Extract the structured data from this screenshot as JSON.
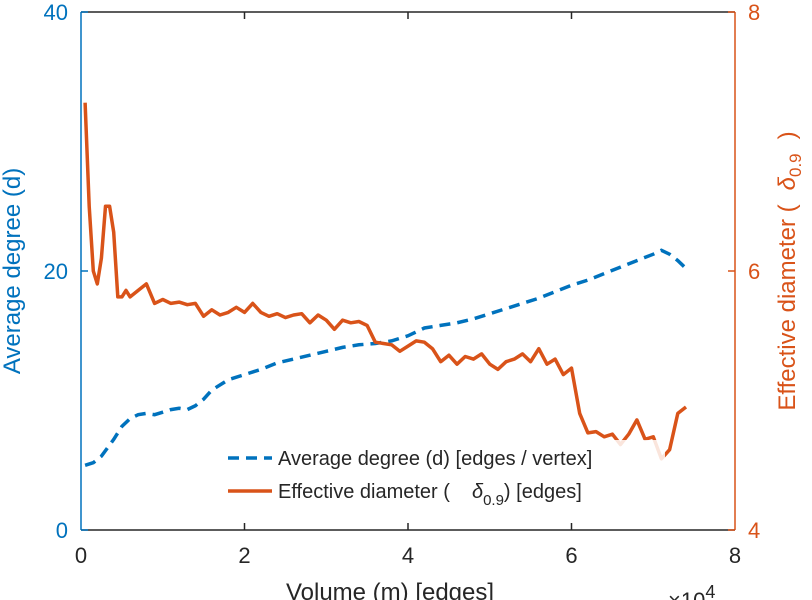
{
  "chart_data": {
    "type": "line",
    "title": "",
    "xlabel": "Volume (m) [edges]",
    "x_exponent": "×10",
    "x_exponent_power": "4",
    "xlim": [
      0,
      8
    ],
    "x_ticks": [
      "0",
      "2",
      "4",
      "6",
      "8"
    ],
    "ylabel_left": "Average degree (d)",
    "ylim_left": [
      0,
      40
    ],
    "y_ticks_left": [
      "0",
      "20",
      "40"
    ],
    "ylabel_right_prefix": "Effective diameter (",
    "ylabel_right_symbol": "δ",
    "ylabel_right_subscript": "0.9",
    "ylabel_right_suffix": ")",
    "ylim_right": [
      4,
      8
    ],
    "y_ticks_right": [
      "4",
      "6",
      "8"
    ],
    "legend": {
      "location": "bottom-right",
      "entries": [
        {
          "label": "Average degree (d) [edges / vertex]",
          "style": "dashed",
          "axis": "left"
        },
        {
          "label_prefix": "Effective diameter (",
          "symbol": "δ",
          "subscript": "0.9",
          "label_suffix": ") [edges]",
          "style": "solid",
          "axis": "right"
        }
      ]
    },
    "colors": {
      "left": "#0072bd",
      "right": "#d95319",
      "axes": "#262626"
    },
    "series": [
      {
        "name": "Average degree (d) [edges / vertex]",
        "axis": "left",
        "style": "dashed",
        "color": "#0072bd",
        "x": [
          0.05,
          0.15,
          0.25,
          0.4,
          0.5,
          0.6,
          0.7,
          0.8,
          0.9,
          1.0,
          1.1,
          1.2,
          1.3,
          1.4,
          1.5,
          1.6,
          1.8,
          2.0,
          2.2,
          2.4,
          2.6,
          2.8,
          3.0,
          3.2,
          3.4,
          3.6,
          3.8,
          4.0,
          4.2,
          4.4,
          4.6,
          4.8,
          5.0,
          5.2,
          5.4,
          5.6,
          5.8,
          6.0,
          6.2,
          6.4,
          6.6,
          6.8,
          7.0,
          7.1,
          7.2,
          7.3,
          7.4
        ],
        "values": [
          5.0,
          5.2,
          5.7,
          7.0,
          8.0,
          8.6,
          8.9,
          9.0,
          8.9,
          9.1,
          9.3,
          9.4,
          9.3,
          9.6,
          10.1,
          10.8,
          11.6,
          12.0,
          12.4,
          12.9,
          13.2,
          13.5,
          13.8,
          14.1,
          14.3,
          14.4,
          14.6,
          15.0,
          15.6,
          15.8,
          16.0,
          16.3,
          16.7,
          17.1,
          17.5,
          17.9,
          18.4,
          18.9,
          19.3,
          19.8,
          20.3,
          20.8,
          21.3,
          21.6,
          21.3,
          20.8,
          20.2
        ]
      },
      {
        "name": "Effective diameter (δ0.9) [edges]",
        "axis": "right",
        "style": "solid",
        "color": "#d95319",
        "x": [
          0.05,
          0.1,
          0.15,
          0.2,
          0.25,
          0.3,
          0.35,
          0.4,
          0.45,
          0.5,
          0.55,
          0.6,
          0.7,
          0.8,
          0.9,
          1.0,
          1.1,
          1.2,
          1.3,
          1.4,
          1.5,
          1.6,
          1.7,
          1.8,
          1.9,
          2.0,
          2.1,
          2.2,
          2.3,
          2.4,
          2.5,
          2.6,
          2.7,
          2.8,
          2.9,
          3.0,
          3.1,
          3.2,
          3.3,
          3.4,
          3.5,
          3.6,
          3.7,
          3.8,
          3.9,
          4.0,
          4.1,
          4.2,
          4.3,
          4.4,
          4.5,
          4.6,
          4.7,
          4.8,
          4.9,
          5.0,
          5.1,
          5.2,
          5.3,
          5.4,
          5.5,
          5.6,
          5.7,
          5.8,
          5.9,
          6.0,
          6.1,
          6.2,
          6.3,
          6.4,
          6.5,
          6.6,
          6.7,
          6.8,
          6.9,
          7.0,
          7.1,
          7.2,
          7.3,
          7.4
        ],
        "values": [
          7.3,
          6.5,
          6.0,
          5.9,
          6.1,
          6.5,
          6.5,
          6.3,
          5.8,
          5.8,
          5.85,
          5.8,
          5.85,
          5.9,
          5.75,
          5.78,
          5.75,
          5.76,
          5.74,
          5.75,
          5.65,
          5.7,
          5.66,
          5.68,
          5.72,
          5.68,
          5.75,
          5.68,
          5.65,
          5.67,
          5.64,
          5.66,
          5.67,
          5.6,
          5.66,
          5.62,
          5.55,
          5.62,
          5.6,
          5.61,
          5.58,
          5.45,
          5.44,
          5.43,
          5.38,
          5.42,
          5.46,
          5.45,
          5.4,
          5.3,
          5.35,
          5.28,
          5.34,
          5.32,
          5.36,
          5.28,
          5.24,
          5.3,
          5.32,
          5.36,
          5.3,
          5.4,
          5.28,
          5.32,
          5.2,
          5.25,
          4.9,
          4.75,
          4.76,
          4.72,
          4.74,
          4.66,
          4.74,
          4.85,
          4.7,
          4.72,
          4.55,
          4.62,
          4.9,
          4.95
        ]
      }
    ]
  }
}
